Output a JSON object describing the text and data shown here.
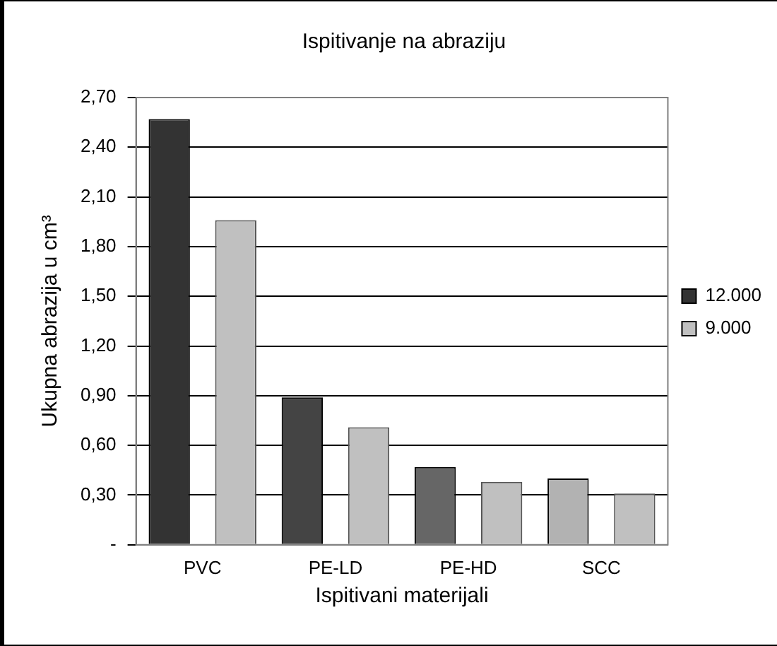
{
  "chart_data": {
    "type": "bar",
    "title": "Ispitivanje na abraziju",
    "xlabel": "Ispitivani materijali",
    "ylabel": "Ukupna abrazija u cm³",
    "categories": [
      "PVC",
      "PE-LD",
      "PE-HD",
      "SCC"
    ],
    "series": [
      {
        "name": "12.000",
        "color": "#333333",
        "colors": [
          "#333333",
          "#444444",
          "#666666",
          "#b2b2b2"
        ],
        "values": [
          2.57,
          0.89,
          0.47,
          0.4
        ]
      },
      {
        "name": "9.000",
        "color": "#c0c0c0",
        "values": [
          1.96,
          0.71,
          0.38,
          0.31
        ]
      }
    ],
    "ylim": [
      0,
      2.7
    ],
    "yticks": [
      {
        "value": 0,
        "label": "-"
      },
      {
        "value": 0.3,
        "label": "0,30"
      },
      {
        "value": 0.6,
        "label": "0,60"
      },
      {
        "value": 0.9,
        "label": "0,90"
      },
      {
        "value": 1.2,
        "label": "1,20"
      },
      {
        "value": 1.5,
        "label": "1,50"
      },
      {
        "value": 1.8,
        "label": "1,80"
      },
      {
        "value": 2.1,
        "label": "2,10"
      },
      {
        "value": 2.4,
        "label": "2,40"
      },
      {
        "value": 2.7,
        "label": "2,70"
      }
    ],
    "grid": "y",
    "legend": "right"
  }
}
